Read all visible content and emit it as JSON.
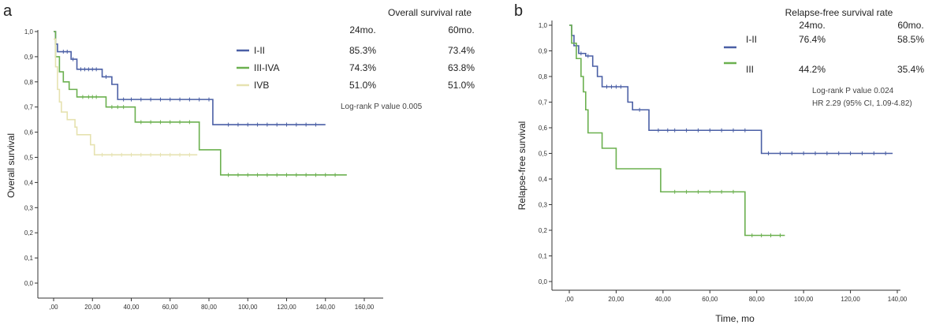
{
  "colors": {
    "series_1": "#4a5fa5",
    "series_2": "#6bb04f",
    "series_3": "#e6e2b0",
    "axis": "#333333"
  },
  "chart_data": [
    {
      "panel": "a",
      "type": "line",
      "step": true,
      "ylabel": "Overall survival",
      "xlabel": "",
      "x_ticks": [
        ",00",
        "20,00",
        "40,00",
        "60,00",
        "80,00",
        "100,00",
        "120,00",
        "140,00",
        "160,00"
      ],
      "y_ticks": [
        "0,0",
        "0,1",
        "0,2",
        "0,3",
        "0,4",
        "0,5",
        "0,6",
        "0,7",
        "0,8",
        "0,9",
        "1,0"
      ],
      "xlim": [
        0,
        160
      ],
      "ylim": [
        0,
        1
      ],
      "rate_title": "Overall survival rate",
      "rate_headers": [
        "24mo.",
        "60mo."
      ],
      "series": [
        {
          "name": "I-II",
          "rate_24": "85.3%",
          "rate_60": "73.4%",
          "color": "#4a5fa5",
          "points": [
            [
              0,
              1
            ],
            [
              1,
              0.95
            ],
            [
              2,
              0.92
            ],
            [
              9,
              0.89
            ],
            [
              12,
              0.85
            ],
            [
              25,
              0.82
            ],
            [
              30,
              0.79
            ],
            [
              33,
              0.73
            ],
            [
              81,
              0.73
            ],
            [
              82,
              0.63
            ],
            [
              140,
              0.63
            ]
          ],
          "censors": [
            5,
            7,
            10,
            14,
            16,
            18,
            20,
            22,
            27,
            36,
            40,
            45,
            50,
            55,
            60,
            65,
            70,
            75,
            80,
            90,
            95,
            100,
            105,
            110,
            115,
            120,
            125,
            130,
            135
          ]
        },
        {
          "name": "III-IVA",
          "rate_24": "74.3%",
          "rate_60": "63.8%",
          "color": "#6bb04f",
          "points": [
            [
              0,
              1
            ],
            [
              1,
              0.9
            ],
            [
              3,
              0.84
            ],
            [
              5,
              0.8
            ],
            [
              8,
              0.77
            ],
            [
              12,
              0.74
            ],
            [
              26,
              0.74
            ],
            [
              27,
              0.7
            ],
            [
              40,
              0.7
            ],
            [
              42,
              0.64
            ],
            [
              74,
              0.64
            ],
            [
              75,
              0.53
            ],
            [
              84,
              0.53
            ],
            [
              86,
              0.43
            ],
            [
              151,
              0.43
            ]
          ],
          "censors": [
            15,
            18,
            20,
            22,
            30,
            33,
            36,
            45,
            50,
            55,
            60,
            65,
            70,
            90,
            95,
            100,
            105,
            110,
            115,
            120,
            125,
            130,
            135,
            140,
            145
          ]
        },
        {
          "name": "IVB",
          "rate_24": "51.0%",
          "rate_60": "51.0%",
          "color": "#e6e2b0",
          "points": [
            [
              0,
              0.97
            ],
            [
              1,
              0.86
            ],
            [
              2,
              0.77
            ],
            [
              3,
              0.72
            ],
            [
              4,
              0.68
            ],
            [
              7,
              0.65
            ],
            [
              11,
              0.62
            ],
            [
              12,
              0.59
            ],
            [
              18,
              0.59
            ],
            [
              19,
              0.55
            ],
            [
              21,
              0.51
            ],
            [
              74,
              0.51
            ]
          ],
          "censors": [
            25,
            30,
            35,
            40,
            45,
            50,
            55,
            60,
            65,
            70
          ]
        }
      ],
      "note": "Log-rank P value 0.005"
    },
    {
      "panel": "b",
      "type": "line",
      "step": true,
      "ylabel": "Relapse-free survival",
      "xlabel": "Time, mo",
      "x_ticks": [
        ",00",
        "20,00",
        "40,00",
        "60,00",
        "80,00",
        "100,00",
        "120,00",
        "140,00"
      ],
      "y_ticks": [
        "0,0",
        "0,1",
        "0,2",
        "0,3",
        "0,4",
        "0,5",
        "0,6",
        "0,7",
        "0,8",
        "0,9",
        "1,0"
      ],
      "xlim": [
        0,
        140
      ],
      "ylim": [
        0,
        1
      ],
      "rate_title": "Relapse-free survival rate",
      "rate_headers": [
        "24mo.",
        "60mo."
      ],
      "series": [
        {
          "name": "I-II",
          "rate_24": "76.4%",
          "rate_60": "58.5%",
          "color": "#4a5fa5",
          "points": [
            [
              0,
              1
            ],
            [
              1,
              0.96
            ],
            [
              2,
              0.92
            ],
            [
              4,
              0.89
            ],
            [
              7,
              0.88
            ],
            [
              10,
              0.84
            ],
            [
              12,
              0.8
            ],
            [
              14,
              0.76
            ],
            [
              24,
              0.76
            ],
            [
              25,
              0.7
            ],
            [
              27,
              0.67
            ],
            [
              32,
              0.67
            ],
            [
              34,
              0.59
            ],
            [
              81,
              0.59
            ],
            [
              82,
              0.5
            ],
            [
              138,
              0.5
            ]
          ],
          "censors": [
            3,
            5,
            8,
            16,
            18,
            20,
            22,
            30,
            38,
            42,
            45,
            50,
            55,
            60,
            65,
            70,
            75,
            85,
            90,
            95,
            100,
            105,
            110,
            115,
            120,
            125,
            130,
            135
          ]
        },
        {
          "name": "III",
          "rate_24": "44.2%",
          "rate_60": "35.4%",
          "color": "#6bb04f",
          "points": [
            [
              0,
              1
            ],
            [
              1,
              0.93
            ],
            [
              3,
              0.87
            ],
            [
              5,
              0.8
            ],
            [
              6,
              0.74
            ],
            [
              7,
              0.67
            ],
            [
              8,
              0.58
            ],
            [
              13,
              0.58
            ],
            [
              14,
              0.52
            ],
            [
              19,
              0.52
            ],
            [
              20,
              0.44
            ],
            [
              38,
              0.44
            ],
            [
              39,
              0.35
            ],
            [
              74,
              0.35
            ],
            [
              75,
              0.18
            ],
            [
              92,
              0.18
            ]
          ],
          "censors": [
            45,
            50,
            55,
            60,
            65,
            70,
            78,
            82,
            86,
            90
          ]
        }
      ],
      "note": "Log-rank P value 0.024",
      "note2": "HR 2.29 (95% CI, 1.09-4.82)"
    }
  ]
}
